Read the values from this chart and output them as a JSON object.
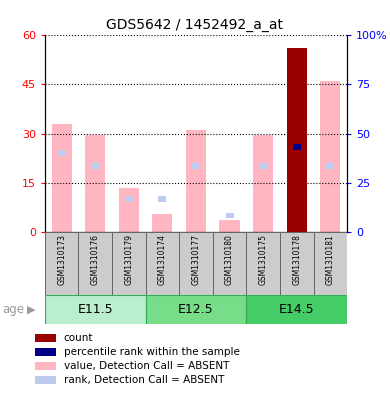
{
  "title": "GDS5642 / 1452492_a_at",
  "samples": [
    "GSM1310173",
    "GSM1310176",
    "GSM1310179",
    "GSM1310174",
    "GSM1310177",
    "GSM1310180",
    "GSM1310175",
    "GSM1310178",
    "GSM1310181"
  ],
  "age_groups": [
    {
      "label": "E11.5",
      "start": 0,
      "end": 3
    },
    {
      "label": "E12.5",
      "start": 3,
      "end": 6
    },
    {
      "label": "E14.5",
      "start": 6,
      "end": 9
    }
  ],
  "value_absent": [
    33,
    29.5,
    13.5,
    5.5,
    31,
    3.5,
    29.5,
    0,
    46
  ],
  "rank_absent": [
    24,
    20,
    10,
    10,
    20,
    5,
    20,
    0,
    20
  ],
  "count": [
    0,
    0,
    0,
    0,
    0,
    0,
    0,
    56,
    0
  ],
  "percentile_rank": [
    0,
    0,
    0,
    0,
    0,
    0,
    0,
    26,
    0
  ],
  "ylim_left": [
    0,
    60
  ],
  "ylim_right": [
    0,
    100
  ],
  "yticks_left": [
    0,
    15,
    30,
    45,
    60
  ],
  "yticks_right": [
    0,
    25,
    50,
    75,
    100
  ],
  "ytick_labels_right": [
    "0",
    "25",
    "50",
    "75",
    "100%"
  ],
  "color_count": "#9B0000",
  "color_percentile": "#00008B",
  "color_value_absent": "#FFB6C1",
  "color_rank_absent": "#BBCCEE",
  "bar_width": 0.6,
  "age_label": "age",
  "age_colors": [
    "#BBEECC",
    "#77DD88",
    "#44CC66"
  ],
  "sample_bg": "#CCCCCC",
  "grid_color": "black",
  "left_tick_color": "red",
  "right_tick_color": "blue"
}
